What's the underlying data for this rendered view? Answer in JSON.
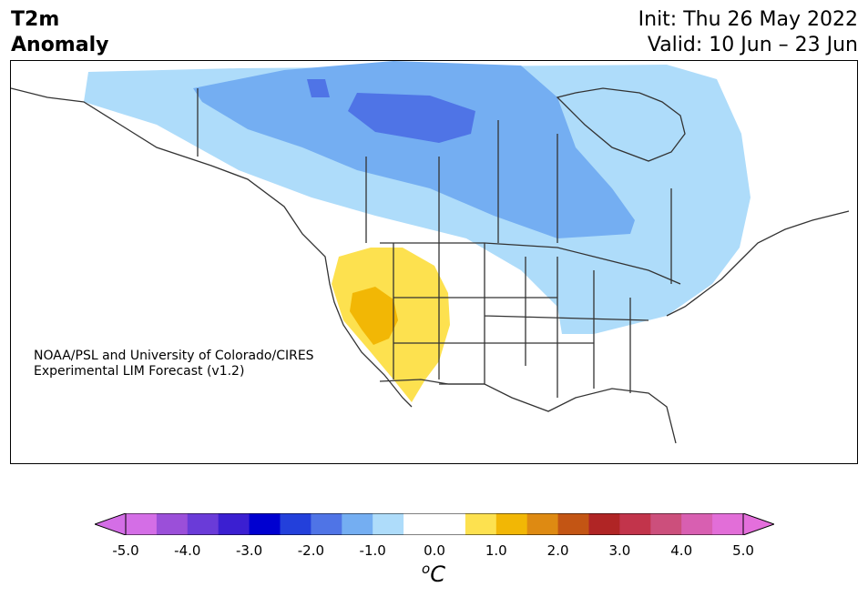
{
  "title": {
    "left_line1": "T2m",
    "left_line2": "Anomaly",
    "init": "Init: Thu 26 May 2022",
    "valid": "Valid: 10 Jun – 23 Jun"
  },
  "credit": {
    "line1": "NOAA/PSL and University of Colorado/CIRES",
    "line2": "Experimental LIM Forecast (v1.2)"
  },
  "colorbar": {
    "unit_base": "C",
    "unit_sup": "o",
    "ticks": [
      "-5.0",
      "-4.0",
      "-3.0",
      "-2.0",
      "-1.0",
      "0.0",
      "1.0",
      "2.0",
      "3.0",
      "4.0",
      "5.0"
    ],
    "colors": [
      "#d46ee6",
      "#9b4fd9",
      "#6a3bd8",
      "#3b1fd1",
      "#0000d0",
      "#2340db",
      "#4f74e6",
      "#74aef2",
      "#aedcfa",
      "#ffffff",
      "#ffffff",
      "#fde14f",
      "#f2b705",
      "#de8a12",
      "#c35514",
      "#b02525",
      "#c2344b",
      "#cc4f7c",
      "#d85fb1",
      "#e26ed8"
    ],
    "under_color": "#d46ee6",
    "over_color": "#e46fdc"
  },
  "map": {
    "region": "North America",
    "field": "2m temperature anomaly",
    "anomaly_colors": {
      "cool_light": "#aedcfa",
      "cool_mid": "#74aef2",
      "cool_strong": "#4f74e6",
      "warm_light": "#fde14f",
      "warm_mid": "#f2b705"
    }
  }
}
